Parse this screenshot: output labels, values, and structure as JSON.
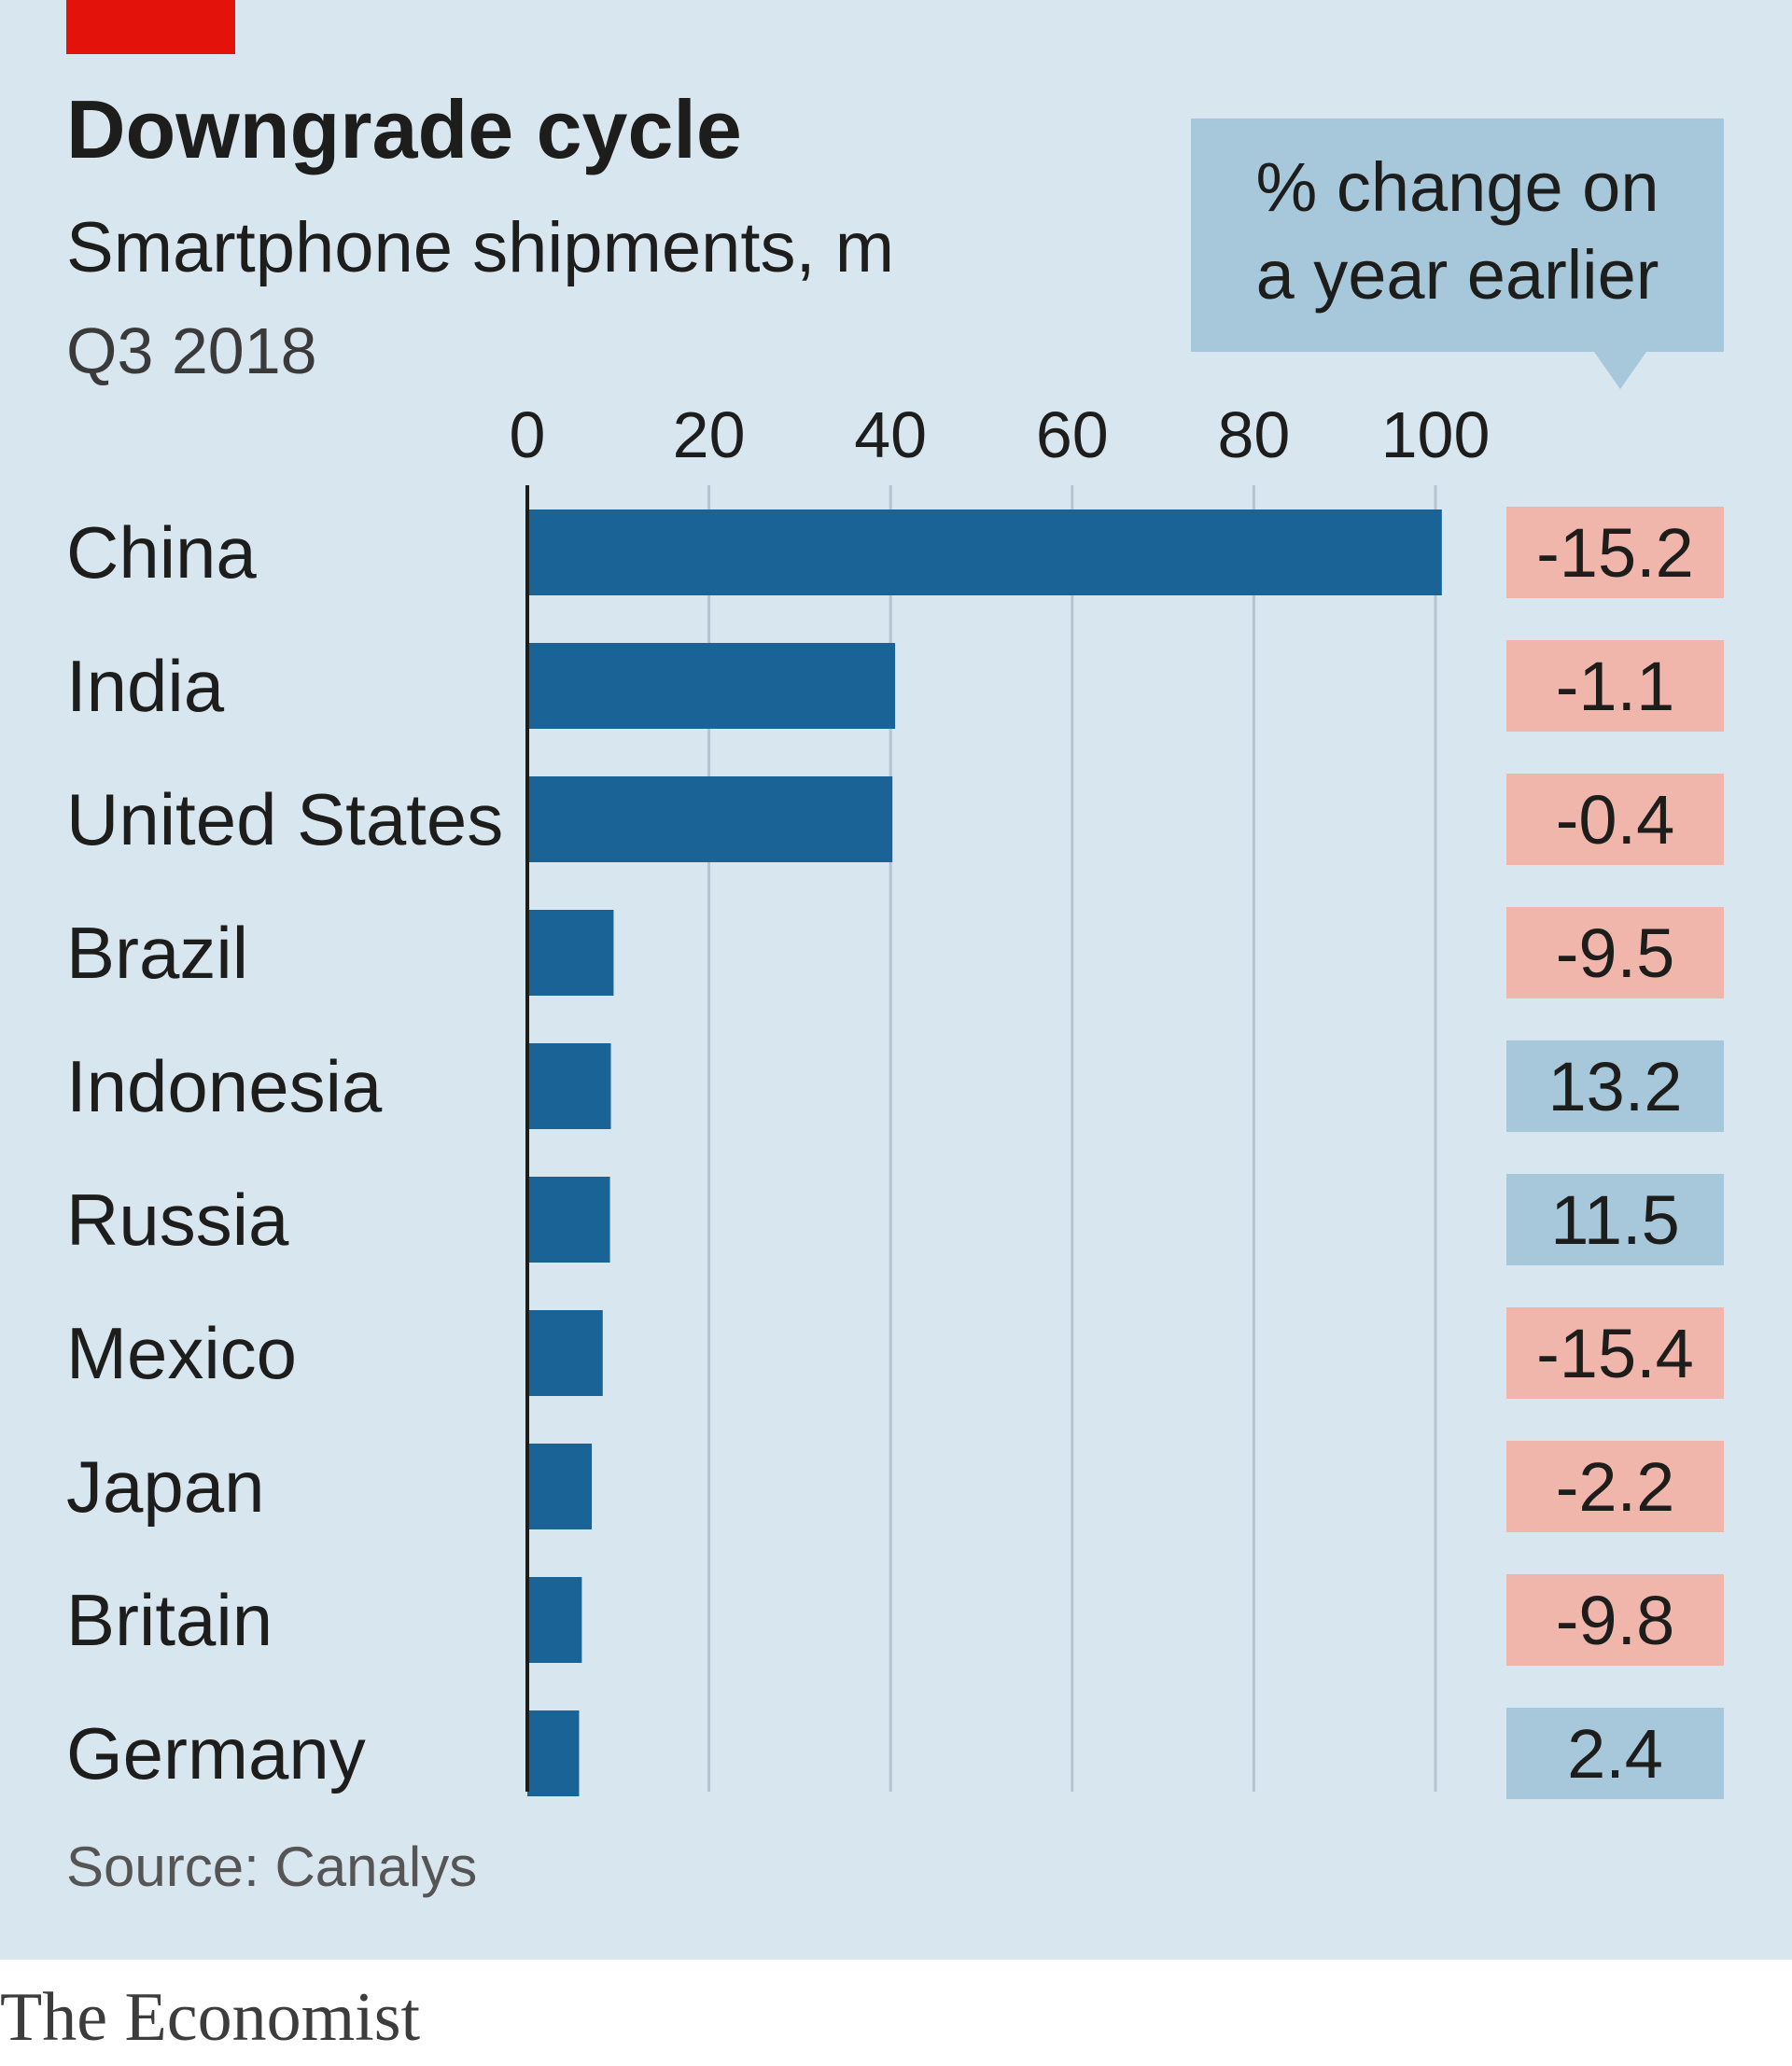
{
  "chart_data": {
    "type": "bar",
    "orientation": "horizontal",
    "title": "Downgrade cycle",
    "subtitle": "Smartphone shipments, m",
    "period": "Q3 2018",
    "categories": [
      "China",
      "India",
      "United States",
      "Brazil",
      "Indonesia",
      "Russia",
      "Mexico",
      "Japan",
      "Britain",
      "Germany"
    ],
    "values": [
      100.7,
      40.5,
      40.2,
      9.5,
      9.2,
      9.1,
      8.3,
      7.1,
      6.0,
      5.7
    ],
    "xlim": [
      0,
      100
    ],
    "xticks": [
      0,
      20,
      40,
      60,
      80,
      100
    ],
    "grid": true,
    "bar_color": "#1a6396",
    "annotation_column": {
      "header_line1": "% change on",
      "header_line2": "a year earlier",
      "values": [
        "-15.2",
        "-1.1",
        "-0.4",
        "-9.5",
        "13.2",
        "11.5",
        "-15.4",
        "-2.2",
        "-9.8",
        "2.4"
      ],
      "negative_color": "#f0b6ab",
      "positive_color": "#a7c7da"
    },
    "source": "Source: Canalys"
  },
  "brand": "The Economist",
  "colors": {
    "background": "#d8e6ef",
    "accent_red": "#e3120b",
    "gridline": "#b5c5cf",
    "axis": "#1d1d1b"
  }
}
